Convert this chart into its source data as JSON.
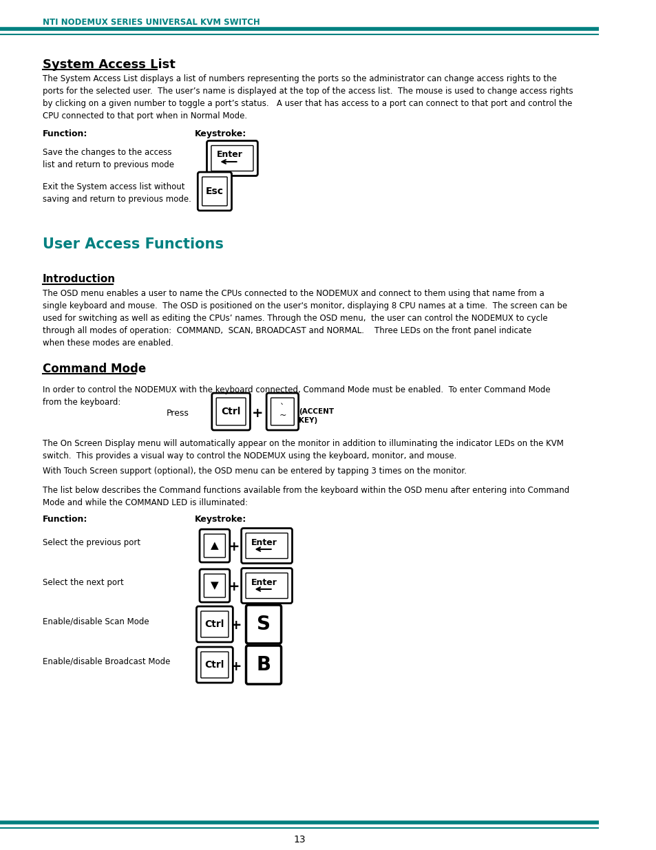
{
  "header_text": "NTI NODEMUX SERIES UNIVERSAL KVM SWITCH",
  "header_color": "#008080",
  "bg_color": "#ffffff",
  "teal_color": "#008080",
  "black_color": "#000000",
  "page_number": "13",
  "section1_title": "System Access List",
  "section1_body": "The System Access List displays a list of numbers representing the ports so the administrator can change access rights to the\nports for the selected user.  The user’s name is displayed at the top of the access list.  The mouse is used to change access rights\nby clicking on a given number to toggle a port’s status.   A user that has access to a port can connect to that port and control the\nCPU connected to that port when in Normal Mode.",
  "function_label": "Function:",
  "keystroke_label": "Keystroke:",
  "func1_text": "Save the changes to the access\nlist and return to previous mode",
  "func2_text": "Exit the System access list without\nsaving and return to previous mode.",
  "section2_title": "User Access Functions",
  "intro_title": "Introduction",
  "intro_body": "The OSD menu enables a user to name the CPUs connected to the NODEMUX and connect to them using that name from a\nsingle keyboard and mouse.  The OSD is positioned on the user's monitor, displaying 8 CPU names at a time.  The screen can be\nused for switching as well as editing the CPUs’ names. Through the OSD menu,  the user can control the NODEMUX to cycle\nthrough all modes of operation:  COMMAND,  SCAN, BROADCAST and NORMAL.    Three LEDs on the front panel indicate\nwhen these modes are enabled.",
  "cmd_title": "Command Mode",
  "cmd_body1": "In order to control the NODEMUX with the keyboard connected, Command Mode must be enabled.  To enter Command Mode\nfrom the keyboard:",
  "press_label": "Press",
  "accent_label": "(ACCENT\nKEY)",
  "cmd_body2": "The On Screen Display menu will automatically appear on the monitor in addition to illuminating the indicator LEDs on the KVM\nswitch.  This provides a visual way to control the NODEMUX using the keyboard, monitor, and mouse.",
  "cmd_body3": "With Touch Screen support (optional), the OSD menu can be entered by tapping 3 times on the monitor.",
  "cmd_body4": "The list below describes the Command functions available from the keyboard within the OSD menu after entering into Command\nMode and while the COMMAND LED is illuminated:",
  "func_prev": "Select the previous port",
  "func_next": "Select the next port",
  "func_scan": "Enable/disable Scan Mode",
  "func_broad": "Enable/disable Broadcast Mode"
}
